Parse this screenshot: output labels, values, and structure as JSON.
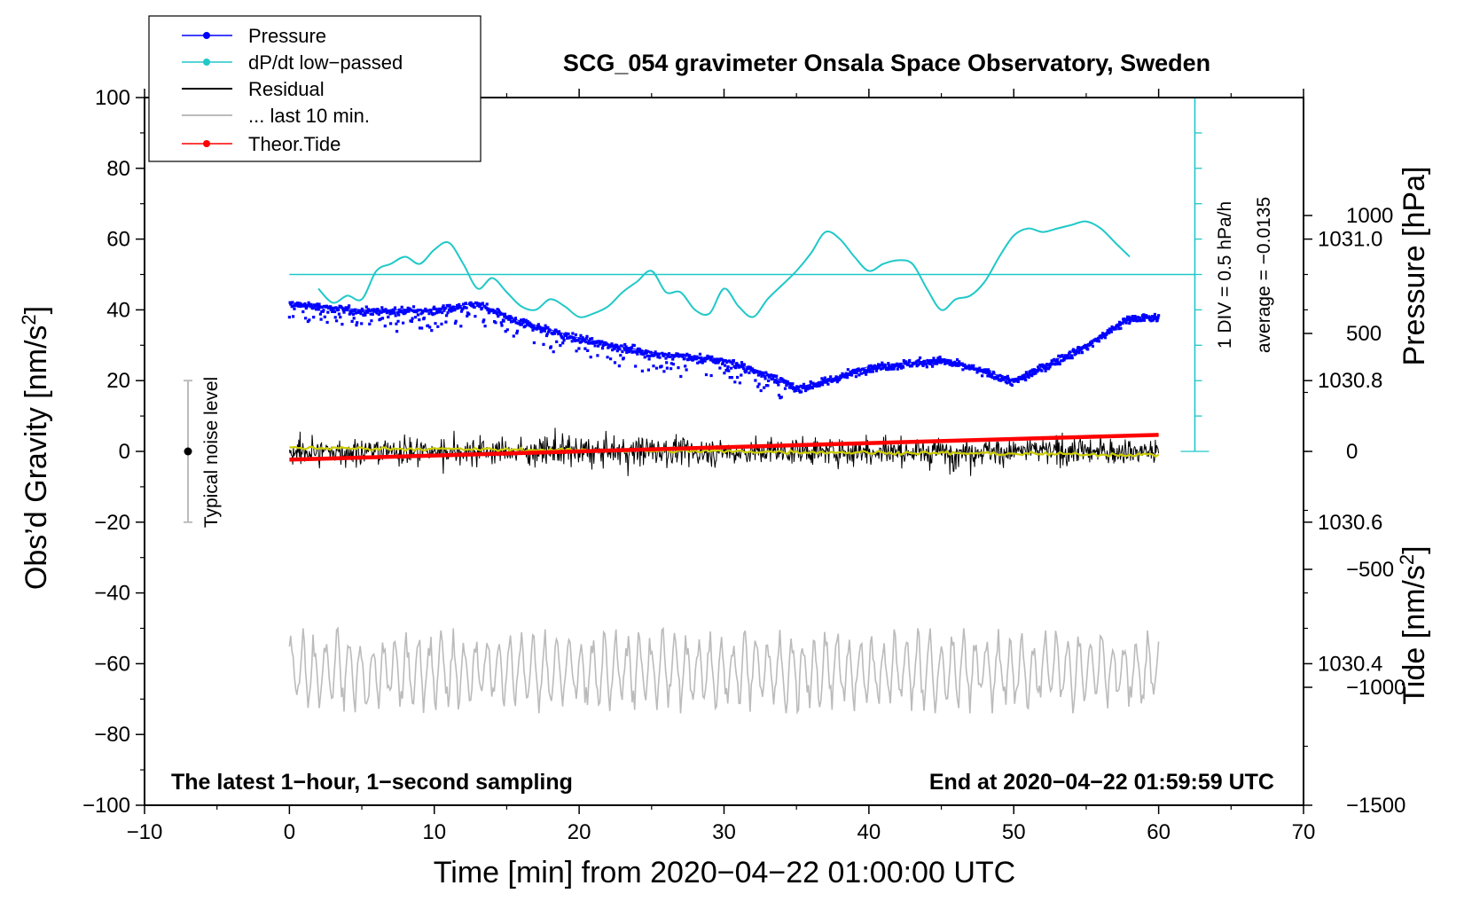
{
  "chart_data": {
    "type": "line",
    "title": "SCG_054 gravimeter Onsala Space Observatory, Sweden",
    "xlabel": "Time [min] from 2020−04−22 01:00:00 UTC",
    "ylabel_left_main": "Obs’d Gravity [nm/s",
    "ylabel_left_sup": "2",
    "ylabel_left_close": "]",
    "ylabel_right_pressure": "Pressure [hPa]",
    "ylabel_right_tide_main": "Tide [nm/s",
    "ylabel_right_tide_sup": "2",
    "ylabel_right_tide_close": "]",
    "xlim": [
      -10,
      70
    ],
    "ylim": [
      -100,
      100
    ],
    "pressure_ylim": [
      1030.2,
      1031.2
    ],
    "tide_ylim": [
      -1500,
      1500
    ],
    "x_ticks": [
      "−10",
      "0",
      "10",
      "20",
      "30",
      "40",
      "50",
      "60",
      "70"
    ],
    "y_ticks": [
      "100",
      "80",
      "60",
      "40",
      "20",
      "0",
      "−20",
      "−40",
      "−60",
      "−80",
      "−100"
    ],
    "pressure_ticks": [
      "1031.0",
      "1030.8",
      "1030.6",
      "1030.4"
    ],
    "tide_ticks": [
      "1000",
      "500",
      "0",
      "−500",
      "−1000",
      "−1500"
    ],
    "legend": [
      {
        "label": "Pressure",
        "color": "#0000ff",
        "style": "line-dot"
      },
      {
        "label": "dP/dt low−passed",
        "color": "#20c8c8",
        "style": "line-dot"
      },
      {
        "label": "Residual",
        "color": "#000000",
        "style": "line"
      },
      {
        "label": "... last 10 min.",
        "color": "#bbbbbb",
        "style": "line"
      },
      {
        "label": "Theor.Tide",
        "color": "#ff0000",
        "style": "line-dot"
      }
    ],
    "noise_label": "Typical noise level",
    "noise_bar": [
      -20,
      20
    ],
    "dpdt_scale_label": "1 DIV = 0.5 hPa/h",
    "dpdt_average_label": "average = −0.0135",
    "bottom_left_note": "The latest 1−hour, 1−second sampling",
    "bottom_right_note": "End at 2020−04−22 01:59:59 UTC",
    "colors": {
      "pressure": "#0000ff",
      "dpdt": "#20c8c8",
      "residual": "#000000",
      "residual_smooth": "#cccc00",
      "last10": "#bbbbbb",
      "tide": "#ff0000"
    },
    "series": [
      {
        "name": "Pressure",
        "unit": "hPa",
        "x": [
          0,
          5,
          10,
          13,
          15,
          20,
          25,
          30,
          33,
          35,
          37,
          40,
          45,
          47,
          50,
          52,
          55,
          58,
          60
        ],
        "values": [
          1030.91,
          1030.9,
          1030.9,
          1030.91,
          1030.89,
          1030.86,
          1030.84,
          1030.83,
          1030.81,
          1030.79,
          1030.8,
          1030.82,
          1030.83,
          1030.82,
          1030.8,
          1030.82,
          1030.85,
          1030.89,
          1030.89
        ]
      },
      {
        "name": "dP/dt low−passed",
        "unit": "nm/s2 plot units",
        "x": [
          2,
          3,
          4,
          5,
          6,
          7,
          8,
          9,
          10,
          11,
          12,
          13,
          14,
          15,
          16,
          17,
          18,
          19,
          20,
          21,
          22,
          23,
          24,
          25,
          26,
          27,
          28,
          29,
          30,
          31,
          32,
          33,
          34,
          35,
          36,
          37,
          38,
          39,
          40,
          41,
          42,
          43,
          44,
          45,
          46,
          47,
          48,
          49,
          50,
          51,
          52,
          53,
          54,
          55,
          56,
          57,
          58
        ],
        "values": [
          46,
          42,
          44,
          43,
          51,
          53,
          55,
          53,
          57,
          59,
          53,
          46,
          49,
          45,
          41,
          40,
          43,
          41,
          38,
          39,
          41,
          45,
          48,
          51,
          45,
          45,
          40,
          39,
          46,
          41,
          38,
          43,
          47,
          51,
          56,
          62,
          60,
          55,
          51,
          53,
          54,
          53,
          46,
          40,
          43,
          44,
          48,
          55,
          61,
          63,
          62,
          63,
          64,
          65,
          63,
          59,
          55
        ]
      },
      {
        "name": "Residual",
        "unit": "nm/s2",
        "x": [
          0,
          60
        ],
        "range": [
          -16,
          17
        ],
        "mean_values": [
          1,
          -1
        ]
      },
      {
        "name": "... last 10 min.",
        "unit": "nm/s2",
        "x": [
          0,
          60
        ],
        "range": [
          -74,
          -50
        ],
        "mean": -62
      },
      {
        "name": "Theor.Tide",
        "unit": "nm/s2",
        "x": [
          0,
          60
        ],
        "values": [
          -35,
          70
        ]
      }
    ]
  }
}
